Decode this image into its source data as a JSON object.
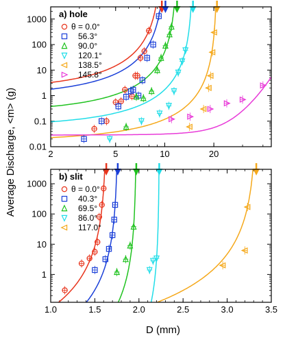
{
  "figure": {
    "ylabel": "Average Discharge, <m> (g)",
    "xlabel": "D (mm)"
  },
  "chart_data": [
    {
      "type": "scatter",
      "panel_label": "a) hole",
      "x_scale": "log",
      "y_scale": "log",
      "xlim": [
        2,
        45
      ],
      "ylim": [
        0.01,
        3000
      ],
      "x_ticks": [
        2,
        5,
        10,
        20
      ],
      "x_tick_labels": [
        "2",
        "5",
        "10",
        "20"
      ],
      "y_ticks": [
        0.01,
        0.1,
        1,
        10,
        100,
        1000
      ],
      "y_tick_labels": [
        "0.01",
        "0.1",
        "1",
        "10",
        "100",
        "1000"
      ],
      "legend_position": "top-left",
      "series": [
        {
          "name": "θ = 0.0°",
          "color": "#e8341c",
          "marker": "circle",
          "d0": 9.6,
          "x": [
            3.7,
            4.4,
            5.0,
            5.4,
            5.7,
            6.3,
            6.6,
            6.8,
            7.1,
            7.5,
            8.0
          ],
          "y": [
            0.05,
            0.1,
            0.55,
            0.6,
            1.7,
            0.95,
            6,
            6,
            30,
            55,
            350
          ]
        },
        {
          "name": "56.3°",
          "color": "#1a3fd8",
          "marker": "square",
          "d0": 10.1,
          "x": [
            3.2,
            4.1,
            5.2,
            5.8,
            6.2,
            6.4,
            6.9,
            7.3,
            7.8,
            8.5,
            9.2
          ],
          "y": [
            0.02,
            0.1,
            0.38,
            0.9,
            1.5,
            1.7,
            1.0,
            4,
            30,
            100,
            1300
          ]
        },
        {
          "name": "90.0°",
          "color": "#1fc21f",
          "marker": "triangle-up",
          "d0": 11.9,
          "x": [
            5.8,
            6.7,
            7.4,
            8.3,
            9.0,
            9.5,
            10.1,
            10.7,
            11.0
          ],
          "y": [
            0.06,
            0.9,
            0.8,
            1.5,
            10,
            30,
            90,
            250,
            500
          ]
        },
        {
          "name": "120.1°",
          "color": "#1fdde8",
          "marker": "triangle-down",
          "d0": 14.9,
          "x": [
            4.6,
            7.2,
            9.3,
            10.6,
            11.4,
            12.1,
            12.8,
            13.4
          ],
          "y": [
            0.02,
            0.1,
            0.2,
            0.4,
            1.5,
            8,
            22,
            60
          ]
        },
        {
          "name": "138.5°",
          "color": "#f5a81a",
          "marker": "triangle-left",
          "d0": 20.9,
          "x": [
            14.2,
            17.3,
            18.6,
            19.1,
            19.6,
            20.1
          ],
          "y": [
            0.06,
            0.3,
            2.0,
            6,
            50,
            300
          ]
        },
        {
          "name": "145.8°",
          "color": "#e83ad8",
          "marker": "triangle-right",
          "d0": null,
          "x": [
            11.0,
            14.3,
            19.0,
            24.0,
            30.0,
            40.0
          ],
          "y": [
            0.12,
            0.15,
            0.3,
            0.5,
            0.7,
            2.5
          ]
        }
      ]
    },
    {
      "type": "scatter",
      "panel_label": "b) slit",
      "x_scale": "linear",
      "y_scale": "log",
      "xlim": [
        1.0,
        3.5
      ],
      "ylim": [
        0.12,
        3000
      ],
      "x_ticks": [
        1.0,
        1.5,
        2.0,
        2.5,
        3.0,
        3.5
      ],
      "x_tick_labels": [
        "1.0",
        "1.5",
        "2.0",
        "2.5",
        "3.0",
        "3.5"
      ],
      "y_ticks": [
        1,
        10,
        100,
        1000
      ],
      "y_tick_labels": [
        "1",
        "10",
        "100",
        "1000"
      ],
      "legend_position": "top-left",
      "series": [
        {
          "name": "θ = 0.0°",
          "color": "#e8341c",
          "marker": "circle",
          "d0": 1.63,
          "x": [
            1.16,
            1.35,
            1.44,
            1.5,
            1.53,
            1.55,
            1.58,
            1.6
          ],
          "y": [
            0.3,
            2.3,
            3.4,
            5.6,
            11.8,
            80,
            200,
            700
          ]
        },
        {
          "name": "40.3°",
          "color": "#1a3fd8",
          "marker": "square",
          "d0": 1.76,
          "x": [
            1.5,
            1.62,
            1.66,
            1.7,
            1.72,
            1.73
          ],
          "y": [
            1.4,
            3.2,
            7,
            20,
            65,
            200
          ]
        },
        {
          "name": "69.5°",
          "color": "#1fc21f",
          "marker": "triangle-up",
          "d0": 1.97,
          "x": [
            1.75,
            1.85,
            1.9,
            1.94
          ],
          "y": [
            1.2,
            3.2,
            9,
            38
          ]
        },
        {
          "name": "86.0°",
          "color": "#1fdde8",
          "marker": "triangle-down",
          "d0": 2.23,
          "x": [
            2.12,
            2.16,
            2.2
          ],
          "y": [
            1.4,
            2.8,
            3.4
          ]
        },
        {
          "name": "117.0°",
          "color": "#f5a81a",
          "marker": "triangle-left",
          "d0": 3.33,
          "x": [
            2.95,
            3.2,
            3.23
          ],
          "y": [
            2.0,
            6.2,
            170
          ]
        }
      ]
    }
  ]
}
